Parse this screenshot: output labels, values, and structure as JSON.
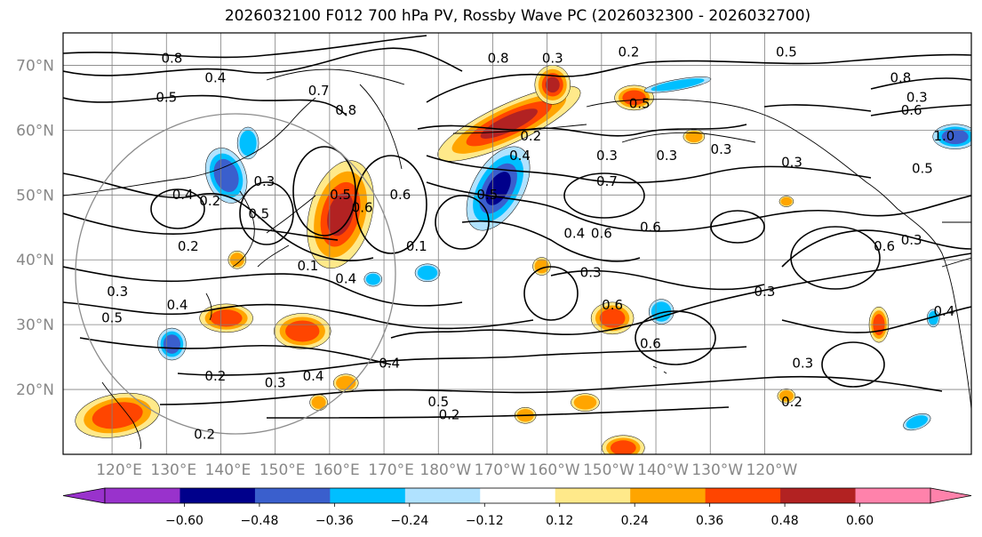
{
  "title": "2026032100 F012 700 hPa PV, Rossby Wave PC (2026032300 - 2026032700)",
  "lat_ticks": [
    "70°N",
    "60°N",
    "50°N",
    "40°N",
    "30°N",
    "20°N"
  ],
  "lon_ticks": [
    "120°E",
    "130°E",
    "140°E",
    "150°E",
    "160°E",
    "170°E",
    "180°W",
    "170°W",
    "160°W",
    "150°W",
    "140°W",
    "130°W",
    "120°W"
  ],
  "colorbar": {
    "ticks": [
      "−0.60",
      "−0.48",
      "−0.36",
      "−0.24",
      "−0.12",
      "0.12",
      "0.24",
      "0.36",
      "0.48",
      "0.60"
    ],
    "colors": [
      "#9932cc",
      "#00008b",
      "#3a5fcd",
      "#00bfff",
      "#b0e2ff",
      "#ffffff",
      "#ffe98a",
      "#ffa500",
      "#ff4500",
      "#b22222",
      "#ff82ab"
    ]
  },
  "contour_labels": [
    {
      "text": "0.8",
      "lon": 131,
      "lat": 71
    },
    {
      "text": "0.4",
      "lon": 139,
      "lat": 68
    },
    {
      "text": "0.5",
      "lon": 130,
      "lat": 65
    },
    {
      "text": "0.7",
      "lon": 158,
      "lat": 66
    },
    {
      "text": "0.8",
      "lon": 163,
      "lat": 63
    },
    {
      "text": "0.8",
      "lon": 191,
      "lat": 71
    },
    {
      "text": "0.3",
      "lon": 201,
      "lat": 71
    },
    {
      "text": "0.2",
      "lon": 215,
      "lat": 72
    },
    {
      "text": "0.5",
      "lon": 244,
      "lat": 72
    },
    {
      "text": "0.5",
      "lon": 217,
      "lat": 64
    },
    {
      "text": "0.2",
      "lon": 197,
      "lat": 59
    },
    {
      "text": "0.4",
      "lon": 195,
      "lat": 56
    },
    {
      "text": "0.3",
      "lon": 211,
      "lat": 56
    },
    {
      "text": "0.3",
      "lon": 222,
      "lat": 56
    },
    {
      "text": "0.3",
      "lon": 232,
      "lat": 57
    },
    {
      "text": "0.7",
      "lon": 211,
      "lat": 52
    },
    {
      "text": "0.5",
      "lon": 189,
      "lat": 50
    },
    {
      "text": "0.6",
      "lon": 173,
      "lat": 50
    },
    {
      "text": "0.6",
      "lon": 166,
      "lat": 48
    },
    {
      "text": "0.5",
      "lon": 162,
      "lat": 50
    },
    {
      "text": "0.3",
      "lon": 148,
      "lat": 52
    },
    {
      "text": "0.2",
      "lon": 138,
      "lat": 49
    },
    {
      "text": "0.4",
      "lon": 133,
      "lat": 50
    },
    {
      "text": "0.5",
      "lon": 147,
      "lat": 47
    },
    {
      "text": "0.2",
      "lon": 134,
      "lat": 42
    },
    {
      "text": "0.1",
      "lon": 156,
      "lat": 39
    },
    {
      "text": "0.1",
      "lon": 176,
      "lat": 42
    },
    {
      "text": "0.4",
      "lon": 205,
      "lat": 44
    },
    {
      "text": "0.6",
      "lon": 210,
      "lat": 44
    },
    {
      "text": "0.6",
      "lon": 219,
      "lat": 45
    },
    {
      "text": "0.3",
      "lon": 208,
      "lat": 38
    },
    {
      "text": "0.6",
      "lon": 212,
      "lat": 33
    },
    {
      "text": "0.6",
      "lon": 219,
      "lat": 27
    },
    {
      "text": "0.4",
      "lon": 163,
      "lat": 37
    },
    {
      "text": "0.3",
      "lon": 121,
      "lat": 35
    },
    {
      "text": "0.5",
      "lon": 120,
      "lat": 31
    },
    {
      "text": "0.4",
      "lon": 132,
      "lat": 33
    },
    {
      "text": "0.2",
      "lon": 139,
      "lat": 22
    },
    {
      "text": "0.3",
      "lon": 150,
      "lat": 21
    },
    {
      "text": "0.4",
      "lon": 157,
      "lat": 22
    },
    {
      "text": "0.4",
      "lon": 171,
      "lat": 24
    },
    {
      "text": "0.5",
      "lon": 180,
      "lat": 18
    },
    {
      "text": "0.2",
      "lon": 182,
      "lat": 16
    },
    {
      "text": "0.2",
      "lon": 137,
      "lat": 13
    },
    {
      "text": "0.3",
      "lon": 240,
      "lat": 35
    },
    {
      "text": "0.3",
      "lon": 247,
      "lat": 24
    },
    {
      "text": "0.2",
      "lon": 245,
      "lat": 18
    },
    {
      "text": "0.4",
      "lon": 273,
      "lat": 32
    },
    {
      "text": "0.3",
      "lon": 267,
      "lat": 43
    },
    {
      "text": "0.6",
      "lon": 262,
      "lat": 42
    },
    {
      "text": "0.3",
      "lon": 245,
      "lat": 55
    },
    {
      "text": "0.5",
      "lon": 269,
      "lat": 54
    },
    {
      "text": "0.3",
      "lon": 268,
      "lat": 65
    },
    {
      "text": "0.6",
      "lon": 267,
      "lat": 63
    },
    {
      "text": "0.8",
      "lon": 265,
      "lat": 68
    },
    {
      "text": "1.0",
      "lon": 273,
      "lat": 59
    }
  ],
  "pv_anomaly_blobs": [
    {
      "lon": 162,
      "lat": 47,
      "rx": 35,
      "ry": 62,
      "rot": 15,
      "levels": [
        "#ffe98a",
        "#ffa500",
        "#ff4500",
        "#b22222"
      ]
    },
    {
      "lon": 193,
      "lat": 61,
      "rx": 88,
      "ry": 22,
      "rot": -25,
      "levels": [
        "#ffe98a",
        "#ffa500",
        "#ff4500",
        "#b22222"
      ]
    },
    {
      "lon": 201,
      "lat": 67,
      "rx": 20,
      "ry": 22,
      "rot": 0,
      "levels": [
        "#ffe98a",
        "#ffa500",
        "#ff4500",
        "#b22222"
      ]
    },
    {
      "lon": 191,
      "lat": 51,
      "rx": 28,
      "ry": 52,
      "rot": 30,
      "levels": [
        "#b0e2ff",
        "#00bfff",
        "#3a5fcd",
        "#00008b"
      ]
    },
    {
      "lon": 141,
      "lat": 53,
      "rx": 22,
      "ry": 32,
      "rot": -20,
      "levels": [
        "#b0e2ff",
        "#00bfff",
        "#3a5fcd"
      ]
    },
    {
      "lon": 145,
      "lat": 58,
      "rx": 12,
      "ry": 18,
      "rot": 0,
      "levels": [
        "#b0e2ff",
        "#00bfff"
      ]
    },
    {
      "lon": 155,
      "lat": 29,
      "rx": 32,
      "ry": 20,
      "rot": 0,
      "levels": [
        "#ffe98a",
        "#ffa500",
        "#ff4500"
      ]
    },
    {
      "lon": 141,
      "lat": 31,
      "rx": 30,
      "ry": 16,
      "rot": 0,
      "levels": [
        "#ffe98a",
        "#ffa500",
        "#ff4500"
      ]
    },
    {
      "lon": 121,
      "lat": 16,
      "rx": 48,
      "ry": 24,
      "rot": -10,
      "levels": [
        "#ffe98a",
        "#ffa500",
        "#ff4500"
      ]
    },
    {
      "lon": 131,
      "lat": 27,
      "rx": 16,
      "ry": 18,
      "rot": 0,
      "levels": [
        "#b0e2ff",
        "#00bfff",
        "#3a5fcd"
      ]
    },
    {
      "lon": 212,
      "lat": 31,
      "rx": 24,
      "ry": 18,
      "rot": 0,
      "levels": [
        "#ffe98a",
        "#ffa500",
        "#ff4500"
      ]
    },
    {
      "lon": 221,
      "lat": 32,
      "rx": 14,
      "ry": 14,
      "rot": 0,
      "levels": [
        "#b0e2ff",
        "#00bfff"
      ]
    },
    {
      "lon": 216,
      "lat": 65,
      "rx": 22,
      "ry": 14,
      "rot": 0,
      "levels": [
        "#ffe98a",
        "#ffa500",
        "#ff4500"
      ]
    },
    {
      "lon": 224,
      "lat": 67,
      "rx": 38,
      "ry": 6,
      "rot": -10,
      "levels": [
        "#b0e2ff",
        "#00bfff"
      ]
    },
    {
      "lon": 275,
      "lat": 59,
      "rx": 25,
      "ry": 14,
      "rot": 0,
      "levels": [
        "#b0e2ff",
        "#00bfff",
        "#3a5fcd"
      ]
    },
    {
      "lon": 261,
      "lat": 30,
      "rx": 11,
      "ry": 20,
      "rot": 0,
      "levels": [
        "#ffe98a",
        "#ffa500",
        "#ff4500"
      ]
    },
    {
      "lon": 214,
      "lat": 11,
      "rx": 24,
      "ry": 14,
      "rot": 0,
      "levels": [
        "#ffe98a",
        "#ffa500",
        "#ff4500"
      ]
    },
    {
      "lon": 207,
      "lat": 18,
      "rx": 16,
      "ry": 10,
      "rot": 0,
      "levels": [
        "#ffe98a",
        "#ffa500"
      ]
    },
    {
      "lon": 178,
      "lat": 38,
      "rx": 14,
      "ry": 10,
      "rot": 0,
      "levels": [
        "#b0e2ff",
        "#00bfff"
      ]
    },
    {
      "lon": 163,
      "lat": 21,
      "rx": 14,
      "ry": 10,
      "rot": 0,
      "levels": [
        "#ffe98a",
        "#ffa500"
      ]
    },
    {
      "lon": 199,
      "lat": 39,
      "rx": 10,
      "ry": 10,
      "rot": 0,
      "levels": [
        "#ffe98a",
        "#ffa500"
      ]
    },
    {
      "lon": 143,
      "lat": 40,
      "rx": 10,
      "ry": 10,
      "rot": 0,
      "levels": [
        "#ffe98a",
        "#ffa500"
      ]
    },
    {
      "lon": 227,
      "lat": 59,
      "rx": 12,
      "ry": 8,
      "rot": 0,
      "levels": [
        "#ffe98a",
        "#ffa500"
      ]
    },
    {
      "lon": 268,
      "lat": 15,
      "rx": 16,
      "ry": 8,
      "rot": -20,
      "levels": [
        "#b0e2ff",
        "#00bfff"
      ]
    },
    {
      "lon": 244,
      "lat": 19,
      "rx": 10,
      "ry": 8,
      "rot": 0,
      "levels": [
        "#ffe98a",
        "#ffa500"
      ]
    },
    {
      "lon": 196,
      "lat": 16,
      "rx": 12,
      "ry": 9,
      "rot": 0,
      "levels": [
        "#ffe98a",
        "#ffa500"
      ]
    },
    {
      "lon": 158,
      "lat": 18,
      "rx": 10,
      "ry": 9,
      "rot": 0,
      "levels": [
        "#ffe98a",
        "#ffa500"
      ]
    },
    {
      "lon": 168,
      "lat": 37,
      "rx": 10,
      "ry": 8,
      "rot": 0,
      "levels": [
        "#b0e2ff",
        "#00bfff"
      ]
    },
    {
      "lon": 244,
      "lat": 49,
      "rx": 8,
      "ry": 6,
      "rot": 0,
      "levels": [
        "#ffe98a",
        "#ffa500"
      ]
    },
    {
      "lon": 271,
      "lat": 31,
      "rx": 7,
      "ry": 10,
      "rot": 0,
      "levels": [
        "#b0e2ff",
        "#00bfff"
      ]
    }
  ]
}
